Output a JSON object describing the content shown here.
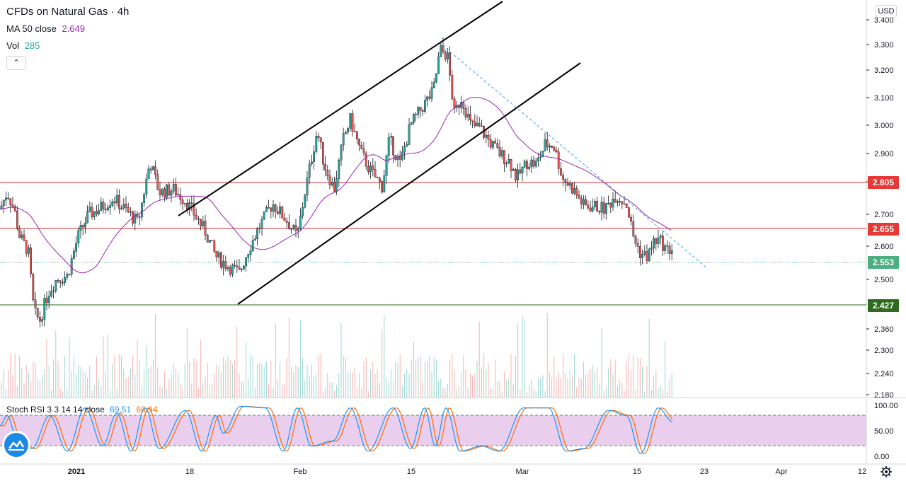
{
  "legend": {
    "symbol": "CFDs on Natural Gas · 4h",
    "ma_name": "MA 50 close",
    "ma_value": "2.649",
    "vol_name": "Vol",
    "vol_value": "285",
    "collapse_icon": "chevron-up-icon"
  },
  "currency": "USD",
  "price_axis": {
    "ticks": [
      "3.400",
      "3.300",
      "3.200",
      "3.100",
      "3.000",
      "2.900",
      "2.800",
      "2.700",
      "2.600",
      "2.500",
      "2.427",
      "2.360",
      "2.300",
      "2.240",
      "2.180"
    ]
  },
  "price_tags": [
    {
      "name": "resistance-high",
      "value": "2.805",
      "color": "#e53935"
    },
    {
      "name": "resistance-low",
      "value": "2.655",
      "color": "#e53935"
    },
    {
      "name": "last-price",
      "value": "2.553",
      "color": "#4caf82"
    },
    {
      "name": "support",
      "value": "2.427",
      "color": "#2e6b1f"
    }
  ],
  "stoch": {
    "label": "Stoch RSI 3 3 14 14 close",
    "k_value": "69.51",
    "d_value": "66.94",
    "k_color": "#2196f3",
    "d_color": "#ff6d00",
    "ticks": [
      "100.00",
      "50.00",
      "0.00"
    ]
  },
  "time_axis": {
    "labels": [
      "2021",
      "18",
      "Feb",
      "15",
      "Mar",
      "15",
      "23",
      "Apr",
      "12"
    ]
  },
  "colors": {
    "up": "#26a69a",
    "down": "#ef5350",
    "ma": "#9c27b0",
    "band": "#e1bee7"
  },
  "icons": {
    "logo": "tradingview-logo-icon",
    "settings": "gear-icon"
  }
}
